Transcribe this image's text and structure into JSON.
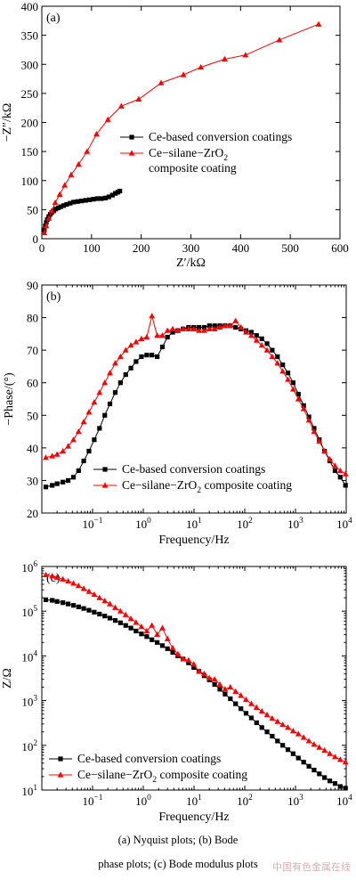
{
  "caption": {
    "line1": "(a) Nyquist plots; (b) Bode",
    "line2": "phase plots; (c) Bode modulus plots"
  },
  "watermark": "中国有色金属在线",
  "colors": {
    "ce": "#000000",
    "composite": "#ff0000"
  },
  "chart_data": [
    {
      "type": "line",
      "panel_label": "(a)",
      "xlabel": "Z′/kΩ",
      "ylabel": "−Z″/kΩ",
      "xlim": [
        0,
        600
      ],
      "ylim": [
        0,
        400
      ],
      "xticks": [
        0,
        100,
        200,
        300,
        400,
        500,
        600
      ],
      "yticks": [
        0,
        50,
        100,
        150,
        200,
        250,
        300,
        350,
        400
      ],
      "legend": "right-middle",
      "series": [
        {
          "name": "Ce-based conversion coatings",
          "marker": "square",
          "x": [
            5,
            7,
            9,
            11,
            14,
            17,
            20,
            24,
            28,
            33,
            38,
            44,
            50,
            57,
            64,
            72,
            80,
            88,
            96,
            104,
            112,
            120,
            128,
            135,
            142,
            148,
            153,
            157
          ],
          "y": [
            15,
            22,
            28,
            33,
            38,
            42,
            45,
            48,
            51,
            53,
            55,
            57,
            59,
            61,
            63,
            64,
            65,
            66,
            67,
            68,
            69,
            69,
            70,
            72,
            75,
            78,
            80,
            82
          ]
        },
        {
          "name": "Ce−silane−ZrO2 composite coating",
          "name_lines": [
            "Ce−silane−ZrO",
            "2",
            "composite coating"
          ],
          "marker": "triangle",
          "x": [
            5,
            9,
            14,
            20,
            27,
            36,
            46,
            59,
            74,
            91,
            110,
            133,
            160,
            195,
            240,
            285,
            320,
            368,
            410,
            478,
            557
          ],
          "y": [
            10,
            22,
            35,
            48,
            62,
            76,
            92,
            110,
            128,
            150,
            180,
            205,
            228,
            240,
            268,
            282,
            295,
            309,
            316,
            342,
            369
          ]
        }
      ]
    },
    {
      "type": "line",
      "panel_label": "(b)",
      "xlabel": "Frequency/Hz",
      "ylabel": "−Phase/(°)",
      "xscale": "log",
      "xlim": [
        0.01,
        10000
      ],
      "ylim": [
        20,
        90
      ],
      "xtick_labels": [
        {
          "base": "10",
          "exp": "−1",
          "value": 0.1
        },
        {
          "base": "10",
          "exp": "0",
          "value": 1
        },
        {
          "base": "10",
          "exp": "1",
          "value": 10
        },
        {
          "base": "10",
          "exp": "2",
          "value": 100
        },
        {
          "base": "10",
          "exp": "3",
          "value": 1000
        },
        {
          "base": "10",
          "exp": "4",
          "value": 10000
        }
      ],
      "yticks": [
        20,
        30,
        40,
        50,
        60,
        70,
        80,
        90
      ],
      "legend": "bottom-center",
      "series": [
        {
          "name": "Ce-based conversion coatings",
          "marker": "square",
          "x": [
            0.012,
            0.016,
            0.02,
            0.026,
            0.033,
            0.042,
            0.053,
            0.067,
            0.085,
            0.108,
            0.137,
            0.174,
            0.22,
            0.28,
            0.355,
            0.45,
            0.57,
            0.72,
            0.92,
            1.17,
            1.48,
            1.88,
            2.38,
            3.0,
            3.8,
            4.8,
            6.1,
            7.8,
            9.9,
            12.5,
            15.9,
            20.1,
            25.5,
            32.3,
            41,
            52,
            66,
            84,
            106,
            135,
            171,
            217,
            275,
            348,
            442,
            560,
            710,
            900,
            1140,
            1450,
            1840,
            2330,
            2950,
            3740,
            4750,
            6020,
            7630,
            9680
          ],
          "y": [
            28,
            28.5,
            29,
            29.5,
            30,
            31,
            33,
            36,
            39,
            42.5,
            46,
            50,
            53.5,
            57,
            60,
            62.5,
            64.5,
            66.5,
            68,
            68.5,
            68.5,
            68,
            71,
            74,
            75.5,
            76,
            76.5,
            77,
            77,
            77,
            77,
            77.5,
            77.5,
            77.5,
            77.5,
            77.5,
            77,
            76.5,
            76,
            75.5,
            74.5,
            73.5,
            72,
            70,
            68,
            65.5,
            63,
            60,
            56.5,
            53,
            49.5,
            46,
            42.5,
            39,
            36,
            33,
            31,
            28.5
          ]
        },
        {
          "name": "Ce−silane−ZrO2 composite coating",
          "name_lines": [
            "Ce−silane−ZrO",
            "2",
            " composite coating"
          ],
          "marker": "triangle",
          "x": [
            0.012,
            0.016,
            0.02,
            0.026,
            0.033,
            0.042,
            0.053,
            0.067,
            0.085,
            0.108,
            0.137,
            0.174,
            0.22,
            0.28,
            0.355,
            0.45,
            0.57,
            0.72,
            0.92,
            1.17,
            1.48,
            1.88,
            2.38,
            3.0,
            3.8,
            4.8,
            6.1,
            7.8,
            9.9,
            12.5,
            15.9,
            20.1,
            25.5,
            32.3,
            41,
            52,
            66,
            84,
            106,
            135,
            171,
            217,
            275,
            348,
            442,
            560,
            710,
            900,
            1140,
            1450,
            1840,
            2330,
            2950,
            3740,
            4750,
            6020,
            7630,
            9680
          ],
          "y": [
            37,
            37.5,
            38,
            39,
            40.5,
            42.5,
            45,
            48,
            51,
            54,
            57,
            60,
            63,
            66,
            68,
            70,
            71.5,
            72.5,
            73.5,
            74,
            80.5,
            74.5,
            74.5,
            76,
            76.5,
            76,
            76.5,
            76.5,
            76.5,
            76,
            76,
            76.5,
            76.5,
            77,
            77.5,
            77.5,
            79,
            77,
            75.5,
            74.5,
            73,
            71.5,
            70,
            68,
            66,
            63.5,
            61,
            58,
            55,
            52,
            48.5,
            45,
            42,
            39,
            36.5,
            34.5,
            33,
            32
          ]
        }
      ]
    },
    {
      "type": "line",
      "panel_label": "(c)",
      "xlabel": "Frequency/Hz",
      "ylabel": "Z/Ω",
      "xscale": "log",
      "yscale": "log",
      "xlim": [
        0.01,
        10000
      ],
      "ylim": [
        10,
        1000000
      ],
      "xtick_labels": [
        {
          "base": "10",
          "exp": "−1",
          "value": 0.1
        },
        {
          "base": "10",
          "exp": "0",
          "value": 1
        },
        {
          "base": "10",
          "exp": "1",
          "value": 10
        },
        {
          "base": "10",
          "exp": "2",
          "value": 100
        },
        {
          "base": "10",
          "exp": "3",
          "value": 1000
        },
        {
          "base": "10",
          "exp": "4",
          "value": 10000
        }
      ],
      "ytick_labels": [
        {
          "base": "10",
          "exp": "1",
          "value": 10
        },
        {
          "base": "10",
          "exp": "2",
          "value": 100
        },
        {
          "base": "10",
          "exp": "3",
          "value": 1000
        },
        {
          "base": "10",
          "exp": "4",
          "value": 10000
        },
        {
          "base": "10",
          "exp": "5",
          "value": 100000
        },
        {
          "base": "10",
          "exp": "6",
          "value": 1000000
        }
      ],
      "legend": "bottom-left",
      "series": [
        {
          "name": "Ce-based conversion coatings",
          "marker": "square",
          "x": [
            0.012,
            0.016,
            0.02,
            0.026,
            0.033,
            0.042,
            0.053,
            0.067,
            0.085,
            0.108,
            0.137,
            0.174,
            0.22,
            0.28,
            0.355,
            0.45,
            0.57,
            0.72,
            0.92,
            1.17,
            1.48,
            1.88,
            2.38,
            3.0,
            3.8,
            4.8,
            6.1,
            7.8,
            9.9,
            12.5,
            15.9,
            20.1,
            25.5,
            32.3,
            41,
            52,
            66,
            84,
            106,
            135,
            171,
            217,
            275,
            348,
            442,
            560,
            710,
            900,
            1140,
            1450,
            1840,
            2330,
            2950,
            3740,
            4750,
            6020,
            7630,
            9680
          ],
          "y": [
            180000,
            175000,
            165000,
            155000,
            145000,
            135000,
            125000,
            115000,
            105000,
            95000,
            86000,
            78000,
            70000,
            62000,
            55000,
            48000,
            42000,
            36000,
            31000,
            27000,
            23000,
            20000,
            17000,
            14500,
            12000,
            10000,
            8500,
            7000,
            5500,
            4500,
            3600,
            2900,
            2300,
            1800,
            1400,
            1100,
            850,
            660,
            520,
            410,
            320,
            250,
            200,
            160,
            125,
            100,
            80,
            65,
            52,
            42,
            34,
            28,
            23,
            19,
            16,
            14,
            12,
            11
          ]
        },
        {
          "name": "Ce−silane−ZrO2 composite coating",
          "name_lines": [
            "Ce−silane−ZrO",
            "2",
            " composite coating"
          ],
          "marker": "triangle",
          "x": [
            0.012,
            0.016,
            0.02,
            0.026,
            0.033,
            0.042,
            0.053,
            0.067,
            0.085,
            0.108,
            0.137,
            0.174,
            0.22,
            0.28,
            0.355,
            0.45,
            0.57,
            0.72,
            0.92,
            1.17,
            1.48,
            1.88,
            2.38,
            3.0,
            3.8,
            4.8,
            6.1,
            7.8,
            9.9,
            12.5,
            15.9,
            20.1,
            25.5,
            32.3,
            41,
            52,
            66,
            84,
            106,
            135,
            171,
            217,
            275,
            348,
            442,
            560,
            710,
            900,
            1140,
            1450,
            1840,
            2330,
            2950,
            3740,
            4750,
            6020,
            7630,
            9680
          ],
          "y": [
            650000,
            610000,
            570000,
            520000,
            470000,
            420000,
            370000,
            320000,
            275000,
            235000,
            200000,
            170000,
            145000,
            120000,
            100000,
            83000,
            68000,
            56000,
            45000,
            36000,
            48000,
            30000,
            42000,
            24000,
            15000,
            11000,
            8500,
            8000,
            6500,
            4500,
            4000,
            3200,
            3000,
            2300,
            1800,
            2000,
            1600,
            1300,
            1050,
            850,
            700,
            580,
            480,
            400,
            340,
            290,
            250,
            210,
            180,
            150,
            125,
            105,
            90,
            77,
            65,
            55,
            48,
            42
          ]
        }
      ]
    }
  ]
}
